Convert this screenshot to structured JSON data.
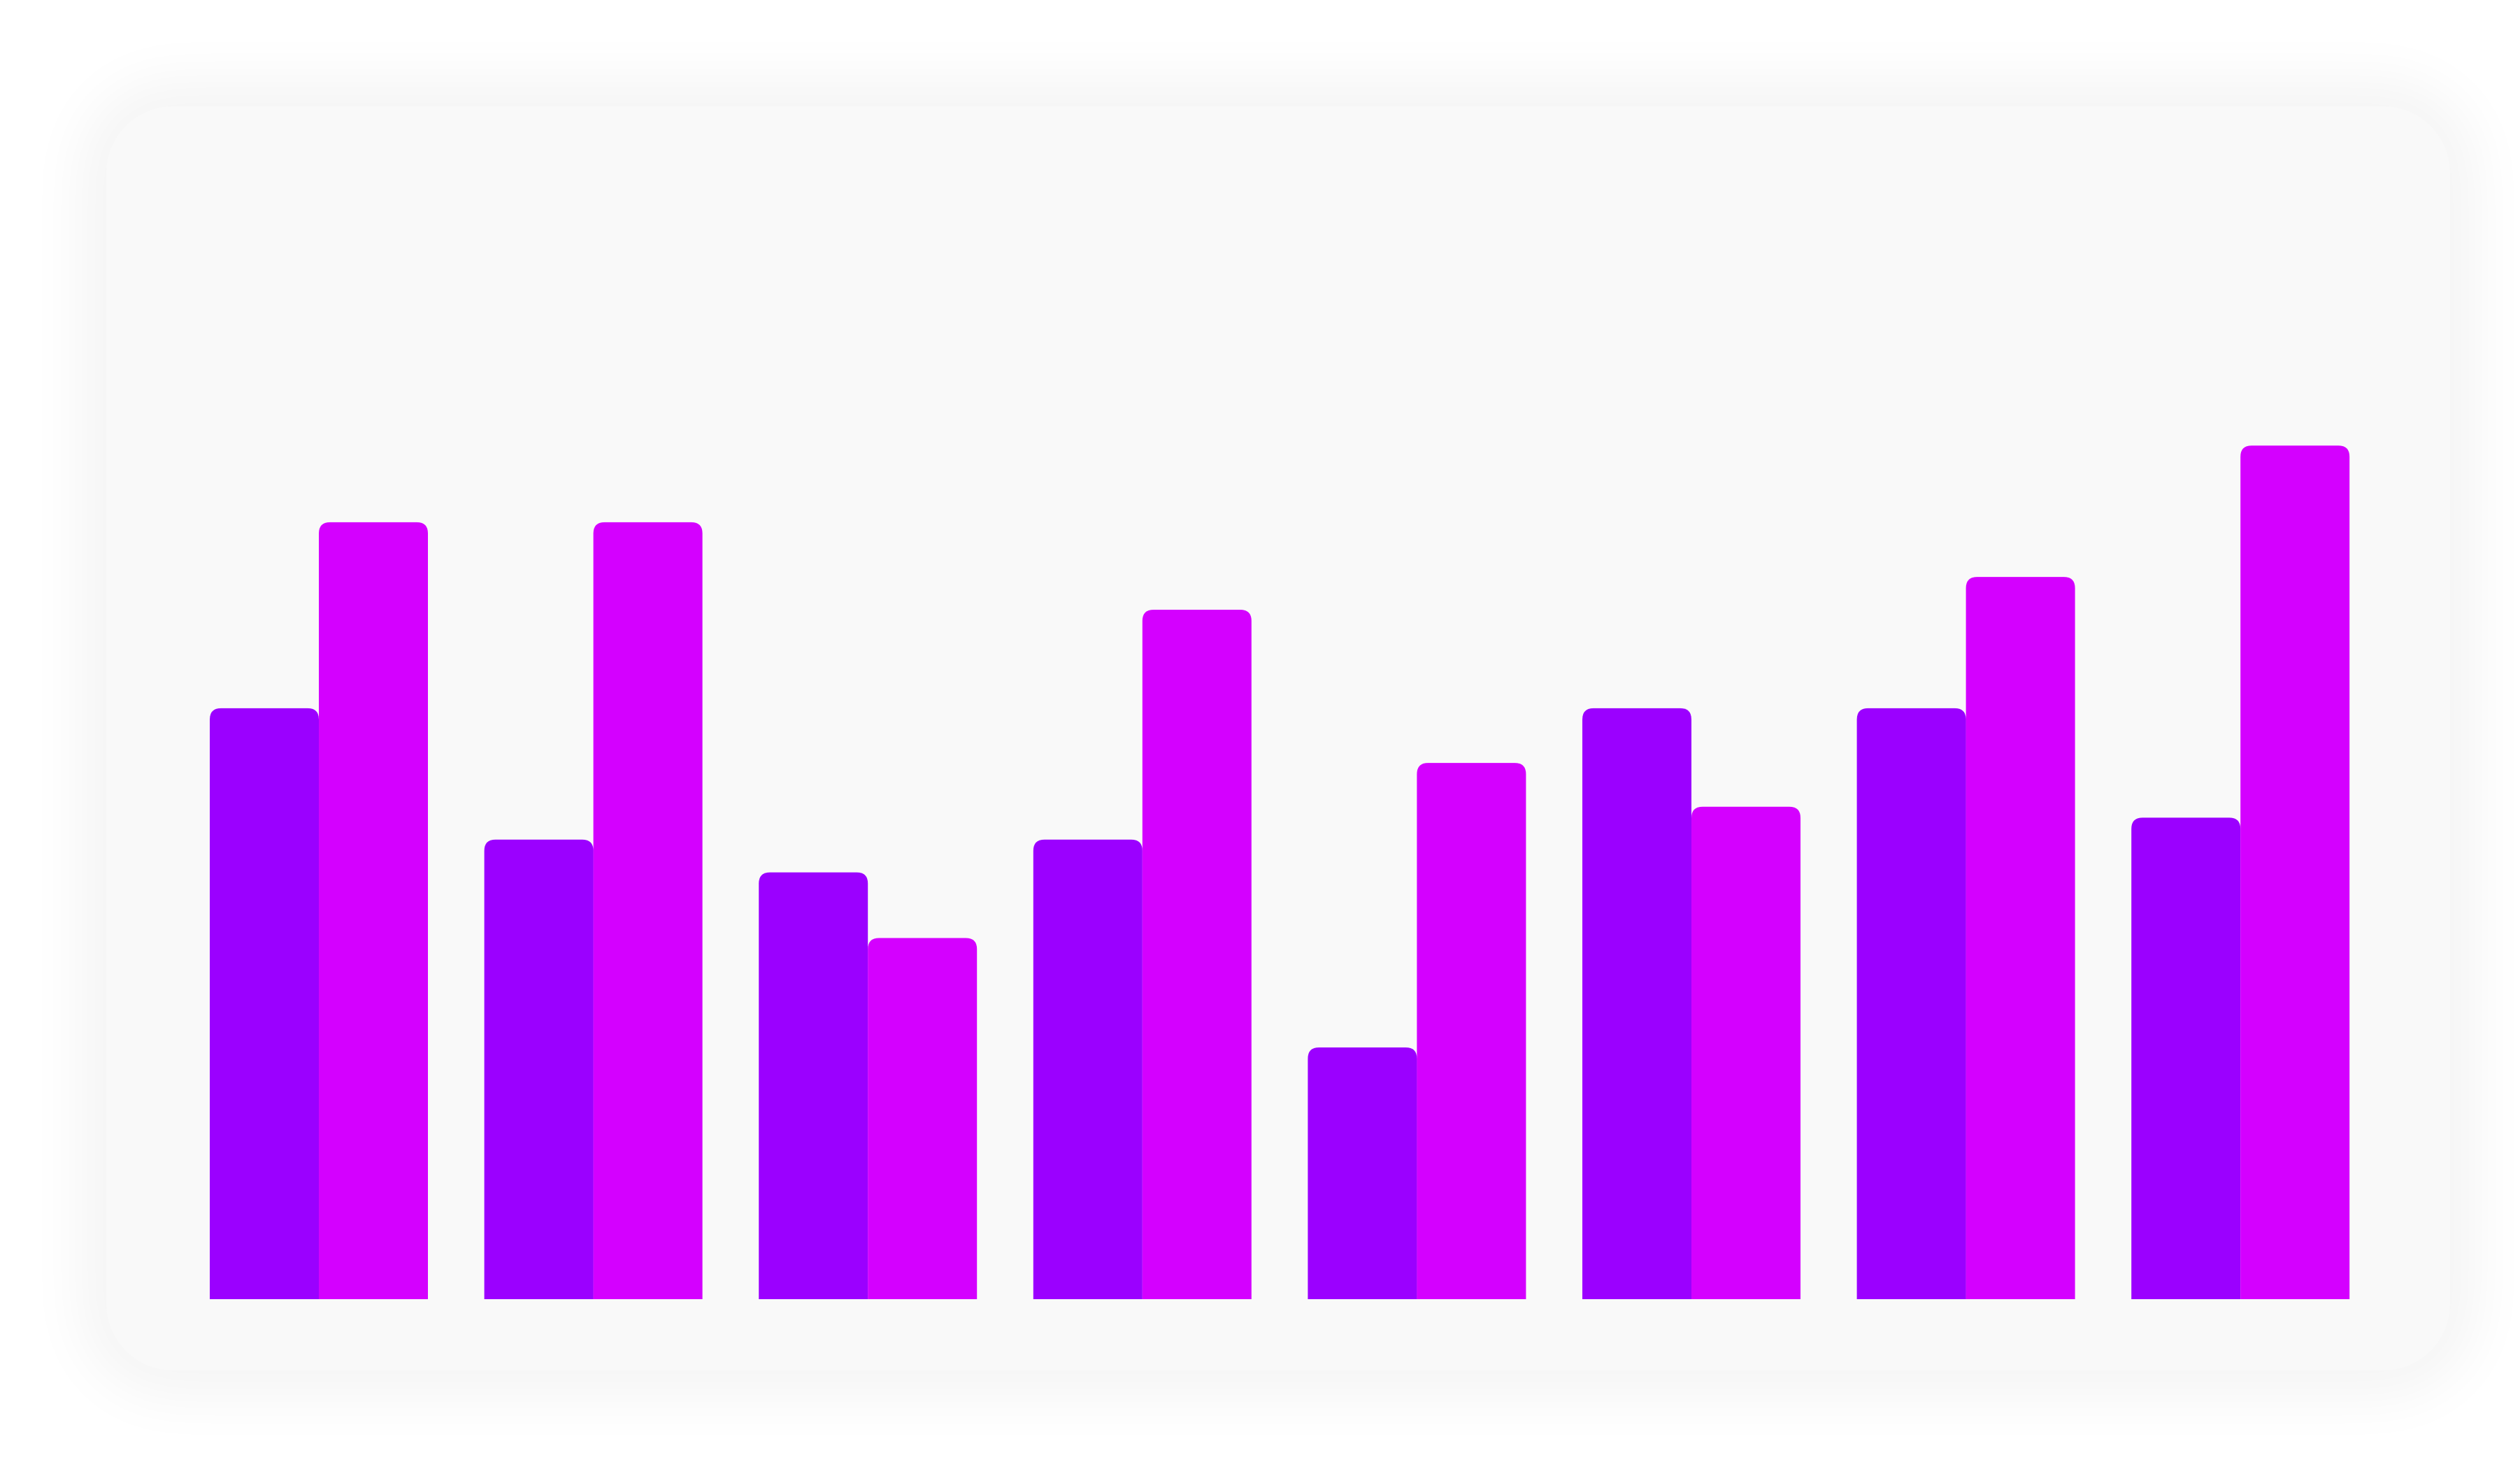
{
  "chart_data": {
    "type": "bar",
    "categories": [
      "",
      "",
      "",
      "",
      "",
      "",
      "",
      ""
    ],
    "series": [
      {
        "values": [
          54,
          42,
          39,
          42,
          23,
          54,
          54,
          44
        ],
        "color": "#9b00ff"
      },
      {
        "values": [
          71,
          71,
          33,
          63,
          49,
          45,
          66,
          78
        ],
        "color": "#d400ff"
      }
    ],
    "title": "",
    "xlabel": "",
    "ylabel": "",
    "ylim": [
      0,
      100
    ],
    "grid": false,
    "legend": false
  }
}
